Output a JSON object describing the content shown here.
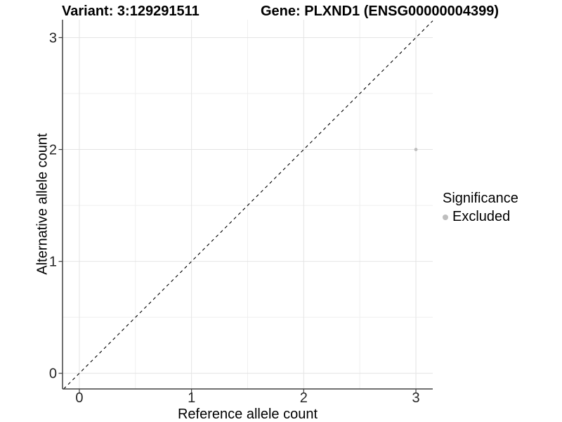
{
  "chart_data": {
    "type": "scatter",
    "titles": {
      "variant": "Variant: 3:129291511",
      "gene": "Gene: PLXND1 (ENSG00000004399)"
    },
    "xlabel": "Reference allele count",
    "ylabel": "Alternative allele count",
    "x_ticks": [
      0,
      1,
      2,
      3
    ],
    "y_ticks": [
      0,
      1,
      2,
      3
    ],
    "x_minor": [
      0.5,
      1.5,
      2.5
    ],
    "y_minor": [
      0.5,
      1.5,
      2.5
    ],
    "xlim": [
      -0.15,
      3.15
    ],
    "ylim": [
      -0.14,
      3.16
    ],
    "grid": {
      "major_color": "#e4e4e4",
      "minor_color": "#efefef",
      "background": "#ffffff"
    },
    "axis_color": "#404040",
    "tick_label_color": "#262626",
    "reference_line": {
      "type": "identity",
      "style": "dashed",
      "color": "#000000"
    },
    "series": [
      {
        "name": "Excluded",
        "color": "#bebebe",
        "point_radius": 2.4,
        "points": [
          [
            3,
            2
          ]
        ]
      }
    ],
    "legend": {
      "title": "Significance",
      "position": "right",
      "items": [
        {
          "label": "Excluded",
          "color": "#bebebe"
        }
      ]
    }
  }
}
